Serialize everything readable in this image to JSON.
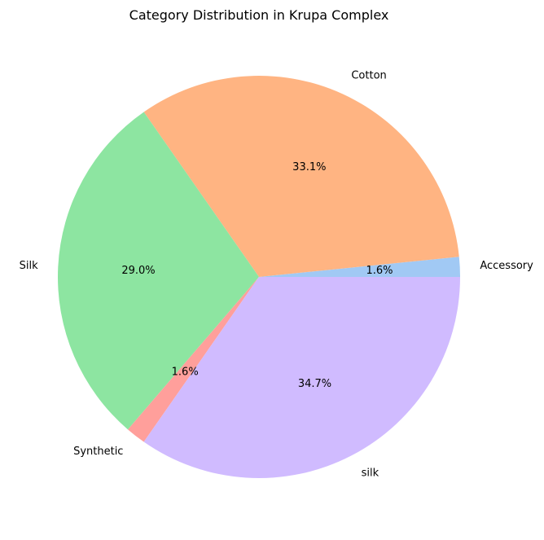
{
  "chart_data": {
    "type": "pie",
    "title": "Category Distribution in Krupa Complex",
    "start_angle_deg": 0,
    "direction": "counterclockwise",
    "slices": [
      {
        "label": "Accessory",
        "value": 1.6,
        "pct_label": "1.6%",
        "color": "#a1c9f4"
      },
      {
        "label": "Cotton",
        "value": 33.1,
        "pct_label": "33.1%",
        "color": "#ffb482"
      },
      {
        "label": "Silk",
        "value": 29.0,
        "pct_label": "29.0%",
        "color": "#8de5a1"
      },
      {
        "label": "Synthetic",
        "value": 1.6,
        "pct_label": "1.6%",
        "color": "#ff9f9b"
      },
      {
        "label": "silk",
        "value": 34.7,
        "pct_label": "34.7%",
        "color": "#d0bbff"
      }
    ]
  }
}
